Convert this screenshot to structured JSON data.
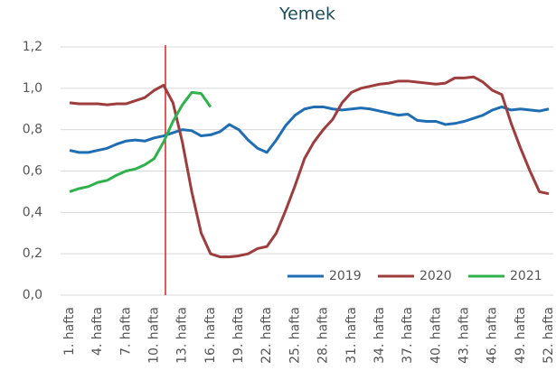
{
  "chart_data": {
    "type": "line",
    "title": "Yemek",
    "categories": [
      "1. hafta",
      null,
      null,
      "4. hafta",
      null,
      null,
      "7. hafta",
      null,
      null,
      "10. hafta",
      null,
      null,
      "13. hafta",
      null,
      null,
      "16. hafta",
      null,
      null,
      "19. hafta",
      null,
      null,
      "22. hafta",
      null,
      null,
      "25. hafta",
      null,
      null,
      "28. hafta",
      null,
      null,
      "31. hafta",
      null,
      null,
      "34. hafta",
      null,
      null,
      "37. hafta",
      null,
      null,
      "40. hafta",
      null,
      null,
      "43. hafta",
      null,
      null,
      "46. hafta",
      null,
      null,
      "49. hafta",
      null,
      null,
      "52. hafta"
    ],
    "series": [
      {
        "name": "2019",
        "color": "#1f6db3",
        "values": [
          0.7,
          0.69,
          0.69,
          0.7,
          0.71,
          0.73,
          0.745,
          0.75,
          0.745,
          0.76,
          0.77,
          0.785,
          0.8,
          0.795,
          0.77,
          0.775,
          0.79,
          0.825,
          0.8,
          0.75,
          0.71,
          0.69,
          0.75,
          0.82,
          0.87,
          0.9,
          0.91,
          0.91,
          0.9,
          0.895,
          0.9,
          0.905,
          0.9,
          0.89,
          0.88,
          0.87,
          0.875,
          0.845,
          0.84,
          0.84,
          0.825,
          0.83,
          0.84,
          0.855,
          0.87,
          0.895,
          0.91,
          0.895,
          0.9,
          0.895,
          0.89,
          0.9
        ]
      },
      {
        "name": "2020",
        "color": "#9e3d3d",
        "values": [
          0.93,
          0.925,
          0.925,
          0.925,
          0.92,
          0.925,
          0.925,
          0.94,
          0.955,
          0.99,
          1.015,
          0.93,
          0.74,
          0.5,
          0.3,
          0.2,
          0.185,
          0.185,
          0.19,
          0.2,
          0.225,
          0.235,
          0.3,
          0.41,
          0.53,
          0.66,
          0.74,
          0.8,
          0.85,
          0.93,
          0.98,
          1.0,
          1.01,
          1.02,
          1.025,
          1.035,
          1.035,
          1.03,
          1.025,
          1.02,
          1.025,
          1.05,
          1.05,
          1.055,
          1.03,
          0.99,
          0.97,
          0.83,
          0.71,
          0.6,
          0.5,
          0.49
        ]
      },
      {
        "name": "2021",
        "color": "#2fb24c",
        "values": [
          0.5,
          0.515,
          0.525,
          0.545,
          0.555,
          0.58,
          0.6,
          0.61,
          0.63,
          0.66,
          0.74,
          0.84,
          0.92,
          0.98,
          0.975,
          0.91,
          null,
          null,
          null,
          null,
          null,
          null,
          null,
          null,
          null,
          null,
          null,
          null,
          null,
          null,
          null,
          null,
          null,
          null,
          null,
          null,
          null,
          null,
          null,
          null,
          null,
          null,
          null,
          null,
          null,
          null,
          null,
          null,
          null,
          null,
          null,
          null
        ]
      }
    ],
    "ylim": [
      0,
      1.2
    ],
    "yticks": [
      {
        "value": 0,
        "label": "0,0"
      },
      {
        "value": 0.2,
        "label": "0,2"
      },
      {
        "value": 0.4,
        "label": "0,4"
      },
      {
        "value": 0.6,
        "label": "0,6"
      },
      {
        "value": 0.8,
        "label": "0,8"
      },
      {
        "value": 1.0,
        "label": "1,0"
      },
      {
        "value": 1.2,
        "label": "1,2"
      }
    ],
    "grid": true,
    "legend": "lower right",
    "vline": {
      "x": 11.2,
      "color": "#e02020"
    }
  }
}
